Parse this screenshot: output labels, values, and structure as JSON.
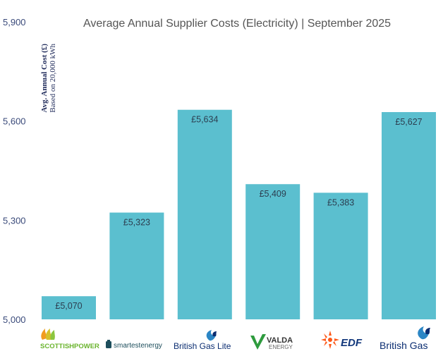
{
  "chart_data": {
    "type": "bar",
    "title": "Average Annual Supplier Costs (Electricity) | September 2025",
    "ylabel": "Avg. Annual Cost (£)",
    "ylabel_sub": "Based on 20,000 kWh",
    "ylim": [
      5000,
      5900
    ],
    "yticks": [
      "5,000",
      "5,300",
      "5,600",
      "5,900"
    ],
    "ytick_values": [
      5000,
      5300,
      5600,
      5900
    ],
    "categories": [
      "SCOTTISHPOWER",
      "smartestenergy",
      "British Gas Lite",
      "VALDA ENERGY",
      "EDF",
      "British Gas"
    ],
    "values": [
      5070,
      5323,
      5634,
      5409,
      5383,
      5627
    ],
    "value_labels": [
      "£5,070",
      "£5,323",
      "£5,634",
      "£5,409",
      "£5,383",
      "£5,627"
    ],
    "bar_color": "#5bbfcf",
    "grid": false,
    "legend": "none"
  },
  "logos": {
    "scottishpower": {
      "text": "SCOTTISHPOWER",
      "color": "#6ab42d",
      "icon": "flame-icon"
    },
    "smartestenergy": {
      "text": "smartestenergy",
      "color": "#1d4e5c",
      "icon": "battery-icon"
    },
    "britishgaslite": {
      "text": "British Gas Lite",
      "color": "#0b2d71",
      "icon": "flame-icon"
    },
    "valda": {
      "text1": "VALDA",
      "text2": "ENERGY",
      "color": "#333333",
      "accent": "#2e9b3e",
      "icon": "v-mark-icon"
    },
    "edf": {
      "text": "EDF",
      "color": "#10367a",
      "accent": "#fe5716",
      "icon": "sunburst-icon"
    },
    "britishgas": {
      "text": "British Gas",
      "color": "#0b2d71",
      "icon": "flame-icon"
    }
  }
}
